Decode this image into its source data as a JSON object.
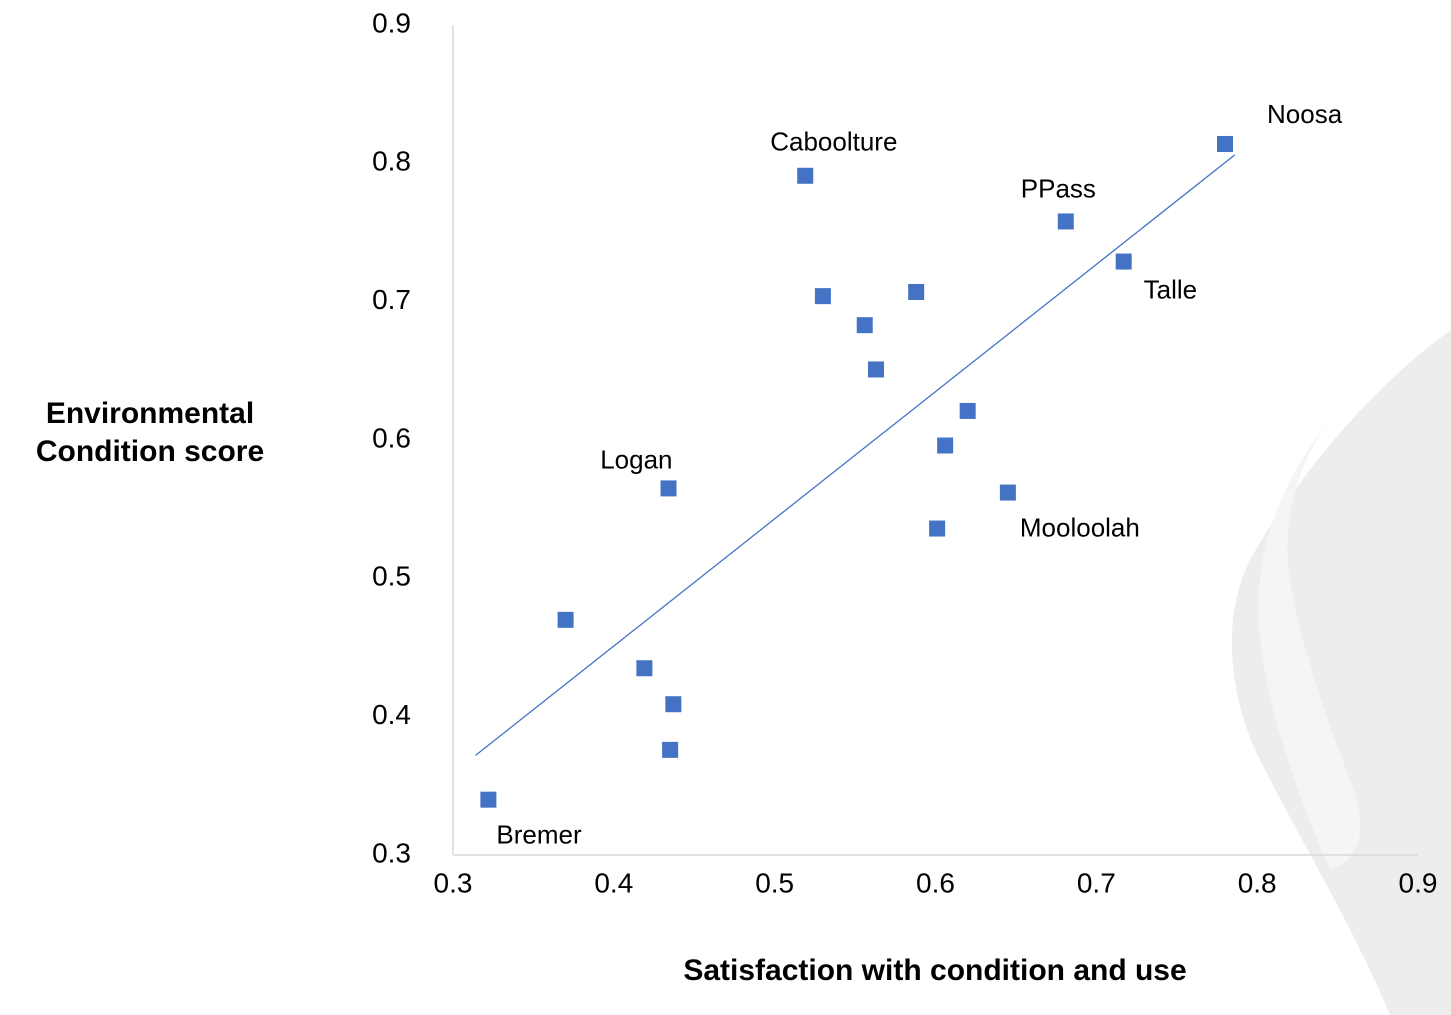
{
  "chart_data": {
    "type": "scatter",
    "x_label": "Satisfaction with condition and use",
    "y_label": "Environmental Condition score",
    "color": "#4472c4",
    "xlim": [
      0.3,
      0.9
    ],
    "ylim": [
      0.3,
      0.9
    ],
    "xticks": [
      0.3,
      0.4,
      0.5,
      0.6,
      0.7,
      0.8,
      0.9
    ],
    "yticks": [
      0.3,
      0.4,
      0.5,
      0.6,
      0.7,
      0.8,
      0.9
    ],
    "x": [
      0.322,
      0.37,
      0.419,
      0.437,
      0.435,
      0.434,
      0.519,
      0.53,
      0.556,
      0.563,
      0.588,
      0.62,
      0.606,
      0.601,
      0.645,
      0.681,
      0.717,
      0.78
    ],
    "values": [
      0.34,
      0.47,
      0.435,
      0.409,
      0.376,
      0.565,
      0.791,
      0.704,
      0.683,
      0.651,
      0.707,
      0.621,
      0.596,
      0.536,
      0.562,
      0.758,
      0.729,
      0.814
    ],
    "point_labels": [
      "Bremer",
      null,
      null,
      null,
      null,
      "Logan",
      "Caboolture",
      null,
      null,
      null,
      null,
      null,
      null,
      null,
      "Mooloolah",
      "PPass",
      "Talle",
      "Noosa"
    ],
    "trendline": {
      "x": [
        0.314,
        0.786
      ],
      "values": [
        0.372,
        0.806
      ],
      "color": "#4472c4"
    }
  }
}
